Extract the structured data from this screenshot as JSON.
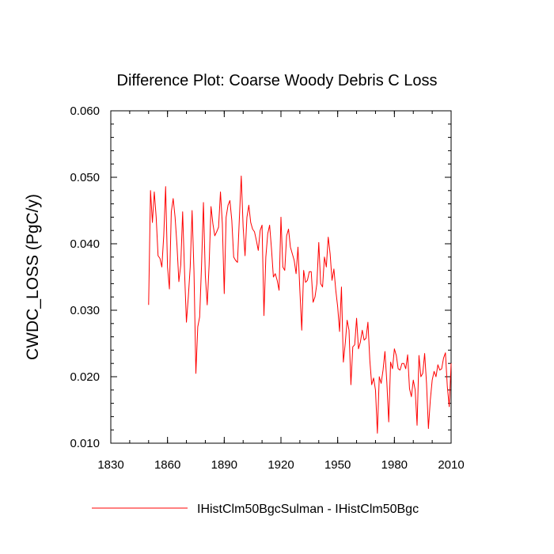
{
  "chart_data": {
    "type": "line",
    "title": "Difference Plot: Coarse Woody Debris C Loss",
    "ylabel": "CWDC_LOSS  (PgC/y)",
    "xlabel": "",
    "xlim": [
      1830,
      2010
    ],
    "ylim": [
      0.01,
      0.06
    ],
    "x_ticks": [
      "1830",
      "1860",
      "1890",
      "1920",
      "1950",
      "1980",
      "2010"
    ],
    "y_ticks": [
      "0.010",
      "0.020",
      "0.030",
      "0.040",
      "0.050",
      "0.060"
    ],
    "grid": false,
    "legend_position": "bottom",
    "series": [
      {
        "name": "IHistClm50BgcSulman - IHistClm50Bgc",
        "color": "#ff0000",
        "x": [
          1850,
          1851,
          1852,
          1853,
          1854,
          1855,
          1856,
          1857,
          1858,
          1859,
          1860,
          1861,
          1862,
          1863,
          1864,
          1865,
          1866,
          1867,
          1868,
          1869,
          1870,
          1871,
          1872,
          1873,
          1874,
          1875,
          1876,
          1877,
          1878,
          1879,
          1880,
          1881,
          1882,
          1883,
          1884,
          1885,
          1886,
          1887,
          1888,
          1889,
          1890,
          1891,
          1892,
          1893,
          1894,
          1895,
          1896,
          1897,
          1898,
          1899,
          1900,
          1901,
          1902,
          1903,
          1904,
          1905,
          1906,
          1907,
          1908,
          1909,
          1910,
          1911,
          1912,
          1913,
          1914,
          1915,
          1916,
          1917,
          1918,
          1919,
          1920,
          1921,
          1922,
          1923,
          1924,
          1925,
          1926,
          1927,
          1928,
          1929,
          1930,
          1931,
          1932,
          1933,
          1934,
          1935,
          1936,
          1937,
          1938,
          1939,
          1940,
          1941,
          1942,
          1943,
          1944,
          1945,
          1946,
          1947,
          1948,
          1949,
          1950,
          1951,
          1952,
          1953,
          1954,
          1955,
          1956,
          1957,
          1958,
          1959,
          1960,
          1961,
          1962,
          1963,
          1964,
          1965,
          1966,
          1967,
          1968,
          1969,
          1970,
          1971,
          1972,
          1973,
          1974,
          1975,
          1976,
          1977,
          1978,
          1979,
          1980,
          1981,
          1982,
          1983,
          1984,
          1985,
          1986,
          1987,
          1988,
          1989,
          1990,
          1991,
          1992,
          1993,
          1994,
          1995,
          1996,
          1997,
          1998,
          1999,
          2000,
          2001,
          2002,
          2003,
          2004,
          2005,
          2006,
          2007,
          2008,
          2009,
          2010
        ],
        "y": [
          0.0308,
          0.048,
          0.0432,
          0.0478,
          0.044,
          0.0382,
          0.0378,
          0.0365,
          0.0412,
          0.0486,
          0.0365,
          0.0332,
          0.0448,
          0.0468,
          0.044,
          0.0398,
          0.0343,
          0.0368,
          0.0448,
          0.0358,
          0.0282,
          0.032,
          0.0365,
          0.045,
          0.0358,
          0.0205,
          0.0275,
          0.029,
          0.0368,
          0.0462,
          0.0352,
          0.0308,
          0.0368,
          0.0456,
          0.043,
          0.0412,
          0.0418,
          0.0425,
          0.0478,
          0.043,
          0.0325,
          0.044,
          0.0458,
          0.0465,
          0.0435,
          0.038,
          0.0375,
          0.0372,
          0.0438,
          0.0502,
          0.0425,
          0.0382,
          0.044,
          0.0458,
          0.0432,
          0.0422,
          0.0418,
          0.0405,
          0.039,
          0.042,
          0.0428,
          0.0292,
          0.038,
          0.0415,
          0.0428,
          0.0392,
          0.035,
          0.0355,
          0.0345,
          0.033,
          0.044,
          0.0365,
          0.036,
          0.0412,
          0.0422,
          0.0395,
          0.0385,
          0.0375,
          0.0355,
          0.0395,
          0.033,
          0.027,
          0.036,
          0.0342,
          0.0345,
          0.0358,
          0.0358,
          0.0312,
          0.032,
          0.034,
          0.0402,
          0.034,
          0.0335,
          0.038,
          0.0365,
          0.041,
          0.0385,
          0.0345,
          0.0362,
          0.033,
          0.0305,
          0.0268,
          0.0335,
          0.0222,
          0.025,
          0.0285,
          0.027,
          0.0188,
          0.0245,
          0.0248,
          0.0288,
          0.0242,
          0.0252,
          0.027,
          0.0255,
          0.0258,
          0.0282,
          0.0225,
          0.0188,
          0.0198,
          0.018,
          0.0115,
          0.02,
          0.019,
          0.021,
          0.0238,
          0.0192,
          0.0132,
          0.0222,
          0.0212,
          0.0242,
          0.0232,
          0.0212,
          0.021,
          0.022,
          0.022,
          0.0212,
          0.0233,
          0.0182,
          0.017,
          0.0195,
          0.018,
          0.0127,
          0.0232,
          0.02,
          0.0205,
          0.0235,
          0.019,
          0.0122,
          0.0165,
          0.0195,
          0.0208,
          0.02,
          0.0218,
          0.021,
          0.0212,
          0.0228,
          0.0236,
          0.0185,
          0.0155,
          0.022
        ]
      }
    ]
  }
}
